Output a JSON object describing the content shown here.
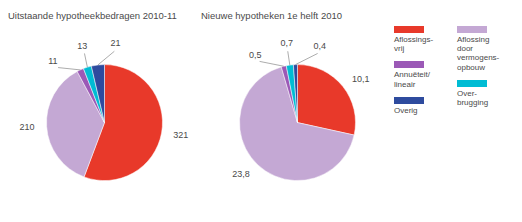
{
  "chart_data": [
    {
      "type": "pie",
      "title": "Uitstaande hypotheekbedragen 2010-11",
      "categories": [
        "Aflossings-\nvrij",
        "Aflossing\ndoor\nvermogens-\nopbouw",
        "Annuëteit/\nlineair",
        "Over-\nbrugging",
        "Overig"
      ],
      "values": [
        321,
        210,
        11,
        13,
        21
      ],
      "colors": [
        "#e8392a",
        "#c4a8d4",
        "#9b59b6",
        "#00bcd4",
        "#2e4b9e"
      ],
      "data_labels": true
    },
    {
      "type": "pie",
      "title": "Nieuwe hypotheken 1e helft 2010",
      "categories": [
        "Aflossings-\nvrij",
        "Aflossing\ndoor\nvermogens-\nopbouw",
        "Annuëteit/\nlineair",
        "Over-\nbrugging",
        "Overig"
      ],
      "values": [
        10.1,
        23.8,
        0.5,
        0.7,
        0.4
      ],
      "value_labels": [
        "10,1",
        "23,8",
        "0,5",
        "0,7",
        "0,4"
      ],
      "colors": [
        "#e8392a",
        "#c4a8d4",
        "#9b59b6",
        "#00bcd4",
        "#2e4b9e"
      ],
      "data_labels": true,
      "legend": "right"
    }
  ]
}
